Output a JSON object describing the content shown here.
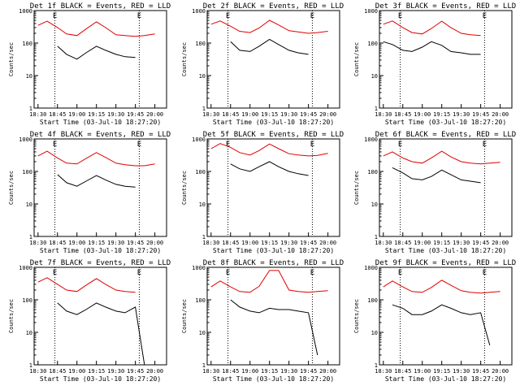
{
  "chart_data": {
    "type": "line",
    "yscale": "log",
    "ylim": [
      1,
      1000
    ],
    "y_ticks": [
      "1",
      "10",
      "100",
      "1000"
    ],
    "x_ticks": [
      "18:30",
      "18:45",
      "19:00",
      "19:15",
      "19:30",
      "19:45",
      "20:00"
    ],
    "xlabel": "Start Time (03-Jul-10 18:27:20)",
    "ylabel": "Counts/sec",
    "start_time": "03-Jul-10 18:27:20",
    "vertical_markers": [
      {
        "time": "18:43",
        "label": "E"
      },
      {
        "time": "19:48",
        "label": "E"
      }
    ],
    "series_colors": {
      "events": "#000000",
      "lld": "#e00000"
    },
    "panels": [
      {
        "title": "Det 1f BLACK = Events, RED = LLD",
        "time": [
          "18:30",
          "18:37",
          "18:45",
          "18:52",
          "19:00",
          "19:07",
          "19:15",
          "19:22",
          "19:30",
          "19:37",
          "19:45",
          "19:52",
          "20:00"
        ],
        "lld": [
          350,
          470,
          300,
          190,
          170,
          270,
          450,
          300,
          180,
          170,
          160,
          170,
          190
        ],
        "events": [
          null,
          null,
          80,
          45,
          32,
          50,
          80,
          60,
          45,
          38,
          36,
          null,
          null
        ]
      },
      {
        "title": "Det 2f BLACK = Events, RED = LLD",
        "time": [
          "18:30",
          "18:37",
          "18:45",
          "18:52",
          "19:00",
          "19:07",
          "19:15",
          "19:22",
          "19:30",
          "19:37",
          "19:45",
          "19:52",
          "20:00"
        ],
        "lld": [
          380,
          480,
          330,
          230,
          210,
          290,
          500,
          360,
          240,
          220,
          200,
          210,
          230
        ],
        "events": [
          null,
          null,
          110,
          60,
          55,
          80,
          130,
          90,
          60,
          50,
          45,
          null,
          null
        ]
      },
      {
        "title": "Det 3f BLACK = Events, RED = LLD",
        "time": [
          "18:30",
          "18:37",
          "18:45",
          "18:52",
          "19:00",
          "19:07",
          "19:15",
          "19:22",
          "19:30",
          "19:37",
          "19:45",
          "19:52",
          "20:00"
        ],
        "lld": [
          380,
          480,
          300,
          210,
          190,
          280,
          470,
          300,
          200,
          180,
          170,
          null,
          null
        ],
        "events": [
          110,
          90,
          60,
          55,
          75,
          110,
          85,
          55,
          50,
          45,
          45,
          null,
          null
        ]
      },
      {
        "title": "Det 4f BLACK = Events, RED = LLD",
        "time": [
          "18:30",
          "18:37",
          "18:45",
          "18:52",
          "19:00",
          "19:07",
          "19:15",
          "19:22",
          "19:30",
          "19:37",
          "19:45",
          "19:52",
          "20:00"
        ],
        "lld": [
          300,
          420,
          260,
          180,
          170,
          250,
          380,
          270,
          180,
          160,
          150,
          150,
          170
        ],
        "events": [
          null,
          null,
          80,
          45,
          35,
          50,
          75,
          55,
          40,
          35,
          33,
          null,
          null
        ]
      },
      {
        "title": "Det 5f BLACK = Events, RED = LLD",
        "time": [
          "18:30",
          "18:37",
          "18:45",
          "18:52",
          "19:00",
          "19:07",
          "19:15",
          "19:22",
          "19:30",
          "19:37",
          "19:45",
          "19:52",
          "20:00"
        ],
        "lld": [
          500,
          720,
          550,
          380,
          320,
          440,
          700,
          500,
          350,
          320,
          300,
          310,
          360
        ],
        "events": [
          null,
          null,
          170,
          120,
          100,
          140,
          200,
          140,
          100,
          85,
          75,
          null,
          null
        ]
      },
      {
        "title": "Det 6f BLACK = Events, RED = LLD",
        "time": [
          "18:30",
          "18:37",
          "18:45",
          "18:52",
          "19:00",
          "19:07",
          "19:15",
          "19:22",
          "19:30",
          "19:37",
          "19:45",
          "19:52",
          "20:00"
        ],
        "lld": [
          300,
          400,
          260,
          200,
          180,
          260,
          420,
          280,
          200,
          180,
          170,
          180,
          190
        ],
        "events": [
          null,
          130,
          90,
          60,
          55,
          70,
          110,
          80,
          55,
          50,
          45,
          null,
          null
        ]
      },
      {
        "title": "Det 7f BLACK = Events, RED = LLD",
        "time": [
          "18:30",
          "18:37",
          "18:45",
          "18:52",
          "19:00",
          "19:07",
          "19:15",
          "19:22",
          "19:30",
          "19:37",
          "19:45",
          "19:52",
          "20:00"
        ],
        "lld": [
          350,
          480,
          300,
          200,
          180,
          280,
          450,
          300,
          200,
          180,
          170,
          null,
          null
        ],
        "events": [
          null,
          null,
          80,
          45,
          35,
          50,
          80,
          60,
          45,
          40,
          60,
          1,
          null
        ]
      },
      {
        "title": "Det 8f BLACK = Events, RED = LLD",
        "time": [
          "18:30",
          "18:37",
          "18:45",
          "18:52",
          "19:00",
          "19:07",
          "19:15",
          "19:22",
          "19:30",
          "19:37",
          "19:45",
          "19:52",
          "20:00"
        ],
        "lld": [
          250,
          380,
          250,
          180,
          170,
          260,
          800,
          800,
          200,
          180,
          170,
          180,
          190
        ],
        "events": [
          null,
          null,
          100,
          60,
          45,
          40,
          55,
          50,
          50,
          45,
          40,
          2,
          null
        ]
      },
      {
        "title": "Det 9f BLACK = Events, RED = LLD",
        "time": [
          "18:30",
          "18:37",
          "18:45",
          "18:52",
          "19:00",
          "19:07",
          "19:15",
          "19:22",
          "19:30",
          "19:37",
          "19:45",
          "19:52",
          "20:00"
        ],
        "lld": [
          250,
          380,
          250,
          180,
          170,
          240,
          400,
          280,
          190,
          170,
          160,
          170,
          180
        ],
        "events": [
          null,
          70,
          55,
          35,
          35,
          45,
          70,
          55,
          40,
          35,
          40,
          4,
          null
        ]
      }
    ]
  }
}
